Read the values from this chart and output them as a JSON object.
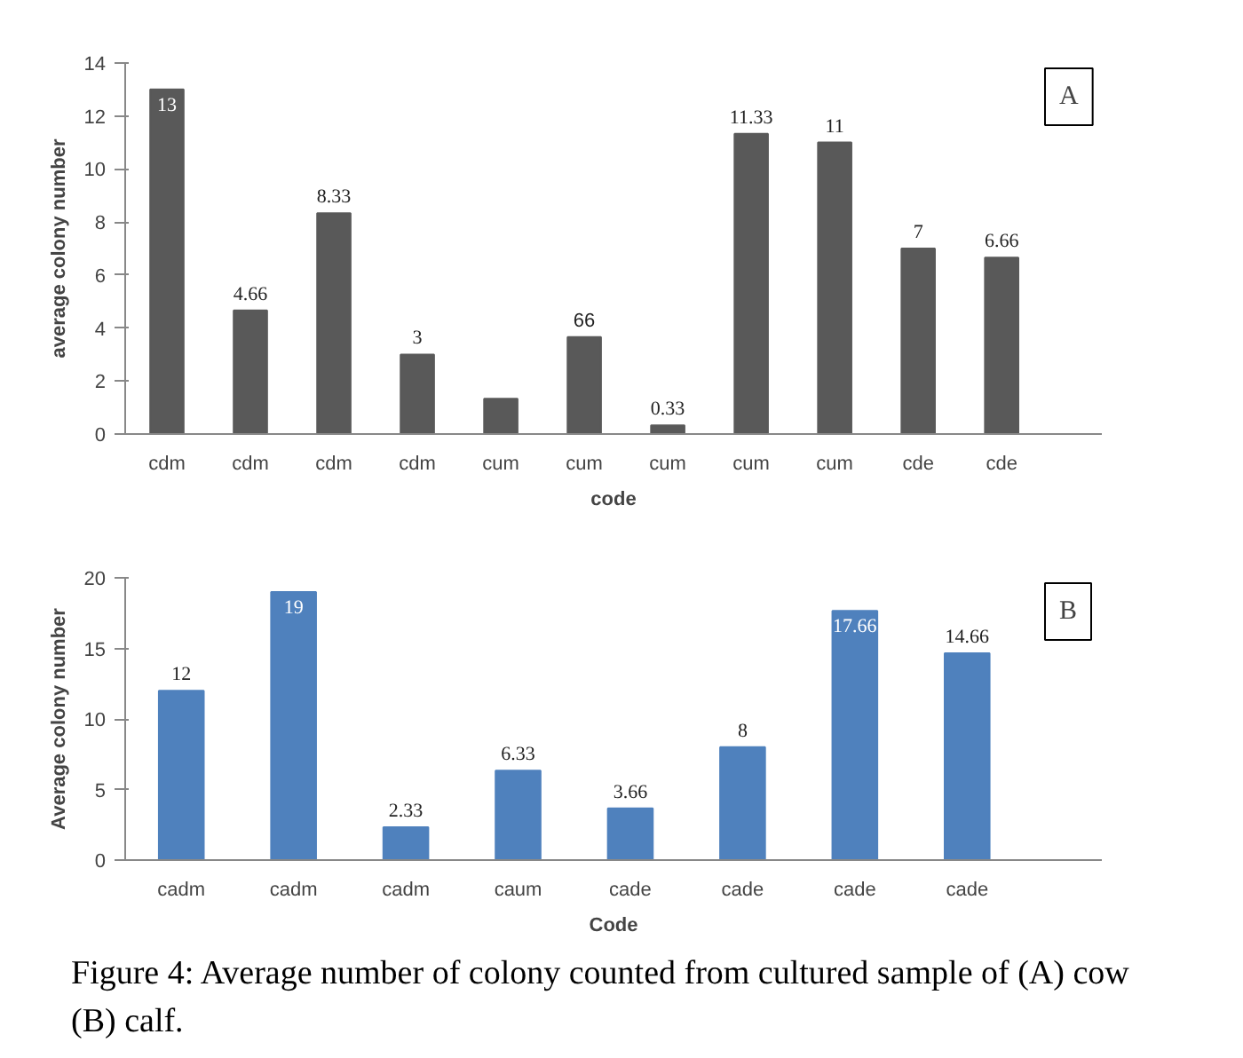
{
  "chart_data": [
    {
      "type": "bar",
      "categories": [
        "cdm",
        "cdm",
        "cdm",
        "cdm",
        "cum",
        "cum",
        "cum",
        "cum",
        "cum",
        "cde",
        "cde"
      ],
      "values": [
        13,
        4.66,
        8.33,
        3,
        1.33,
        3.66,
        0.33,
        11.33,
        11,
        7,
        6.66
      ],
      "value_labels": [
        "13",
        "4.66",
        "8.33",
        "3",
        null,
        null,
        "0.33",
        "11.33",
        "11",
        "7",
        "6.66"
      ],
      "color": "#595959",
      "xlabel": "code",
      "ylabel": "average colony number",
      "ylim": [
        0,
        14
      ],
      "yticks": [
        0,
        2,
        4,
        6,
        8,
        10,
        12,
        14
      ],
      "grid": false,
      "annotations": [
        "A",
        "66"
      ]
    },
    {
      "type": "bar",
      "categories": [
        "cadm",
        "cadm",
        "cadm",
        "caum",
        "cade",
        "cade",
        "cade",
        "cade"
      ],
      "values": [
        12,
        19,
        2.33,
        6.33,
        3.66,
        8,
        17.66,
        14.66
      ],
      "data_labels": true,
      "color": "#4f81bd",
      "xlabel": "Code",
      "ylabel": "Average colony number",
      "ylim": [
        0,
        20
      ],
      "yticks": [
        0,
        5,
        10,
        15,
        20
      ],
      "grid": false,
      "annotations": [
        "B",
        "Figure 4: Average number of colony counted from cultured sample of (A) cow (B) calf."
      ]
    }
  ]
}
